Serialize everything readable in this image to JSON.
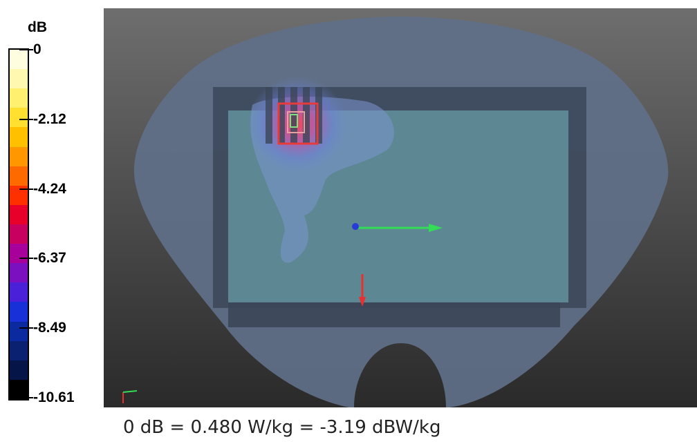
{
  "legend": {
    "unit": "dB",
    "ticks": [
      "0",
      "-2.12",
      "-4.24",
      "-6.37",
      "-8.49",
      "-10.61"
    ],
    "colors": [
      "#fffde0",
      "#fff8b0",
      "#fff070",
      "#ffe030",
      "#ffc000",
      "#ff9800",
      "#ff6a00",
      "#ff3000",
      "#e8002a",
      "#c80060",
      "#a8009a",
      "#7a10c0",
      "#4a20d8",
      "#1830d8",
      "#0c2aa0",
      "#0a2070",
      "#061548",
      "#000000"
    ]
  },
  "caption": "0 dB = 0.480 W/kg = -3.19 dBW/kg",
  "scene": {
    "icons": [
      "origin-point-icon",
      "x-axis-arrow-icon",
      "y-axis-arrow-icon",
      "corner-axes-icon"
    ],
    "colors": {
      "background_top": "#6e6e6e",
      "background_bottom": "#2a2a2a",
      "phantom": "#5f7088",
      "device_frame": "#3b4658",
      "device_screen": "#5f8a96",
      "hotspot": "#d83a3a",
      "axis_x": "#33dd55",
      "axis_y": "#e83030"
    }
  }
}
